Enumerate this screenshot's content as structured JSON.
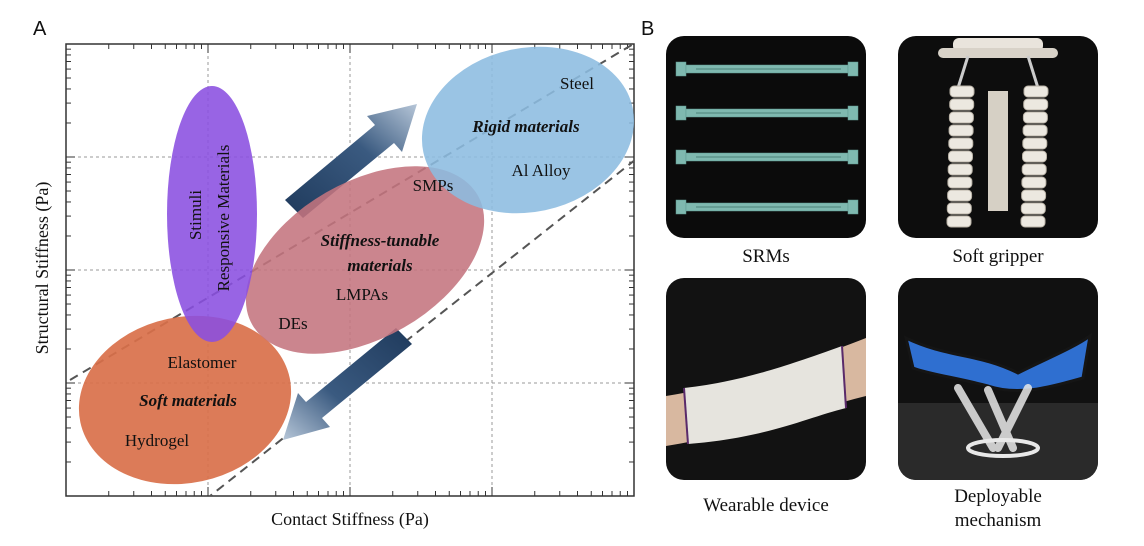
{
  "panel_a": {
    "letter": "A",
    "x_label": "Contact Stiffness (Pa)",
    "y_label": "Structural Stiffness (Pa)",
    "regions": {
      "stimuli": {
        "line1": "Stimuli",
        "line2": "Responsive Materials",
        "color": "#8a4fe0"
      },
      "rigid": {
        "title": "Rigid materials",
        "item1": "Steel",
        "item2": "Al Alloy",
        "color": "#8cbce0"
      },
      "tunable": {
        "title_line1": "Stiffness-tunable",
        "title_line2": "materials",
        "item1": "SMPs",
        "item2": "LMPAs",
        "item3": "DEs",
        "color": "#c4747e"
      },
      "soft": {
        "title": "Soft materials",
        "item1": "Elastomer",
        "item2": "Hydrogel",
        "color": "#d9704a"
      }
    }
  },
  "panel_b": {
    "letter": "B",
    "captions": {
      "srms": "SRMs",
      "gripper": "Soft gripper",
      "wearable": "Wearable device",
      "deploy_line1": "Deployable",
      "deploy_line2": "mechanism"
    }
  }
}
